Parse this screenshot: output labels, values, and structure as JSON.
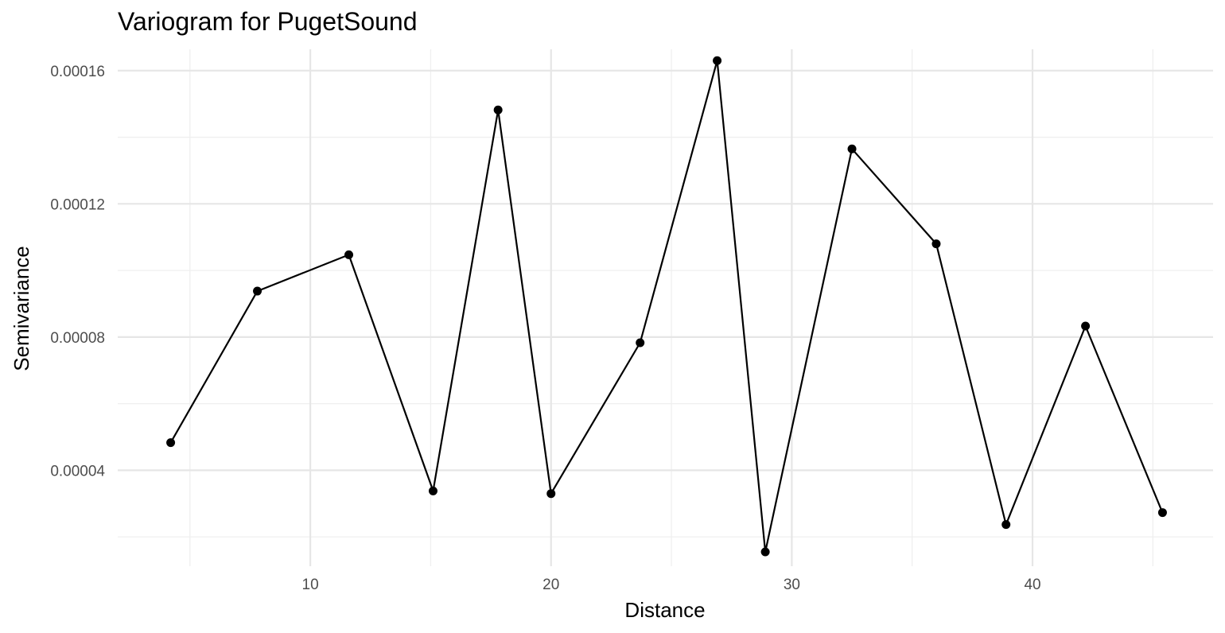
{
  "chart_data": {
    "type": "line",
    "title": "Variogram for PugetSound",
    "xlabel": "Distance",
    "ylabel": "Semivariance",
    "xlim": [
      2.0,
      47.5
    ],
    "ylim": [
      1.12e-05,
      0.0001664
    ],
    "x_ticks": [
      10,
      20,
      30,
      40
    ],
    "x_tick_labels": [
      "10",
      "20",
      "30",
      "40"
    ],
    "x_minor_ticks": [
      5,
      15,
      25,
      35,
      45
    ],
    "y_ticks": [
      4e-05,
      8e-05,
      0.00012,
      0.00016
    ],
    "y_tick_labels": [
      "0.00004",
      "0.00008",
      "0.00012",
      "0.00016"
    ],
    "y_minor_ticks": [
      2e-05,
      6e-05,
      0.0001,
      0.00014
    ],
    "grid": true,
    "series": [
      {
        "x": [
          4.2,
          7.8,
          11.6,
          15.1,
          17.8,
          20.0,
          23.7,
          26.9,
          28.9,
          32.5,
          36.0,
          38.9,
          42.2,
          45.4
        ],
        "y": [
          4.83e-05,
          9.38e-05,
          0.0001047,
          3.38e-05,
          0.0001482,
          3.3e-05,
          7.83e-05,
          0.000163,
          1.55e-05,
          0.0001365,
          0.000108,
          2.37e-05,
          8.33e-05,
          2.73e-05
        ]
      }
    ]
  }
}
